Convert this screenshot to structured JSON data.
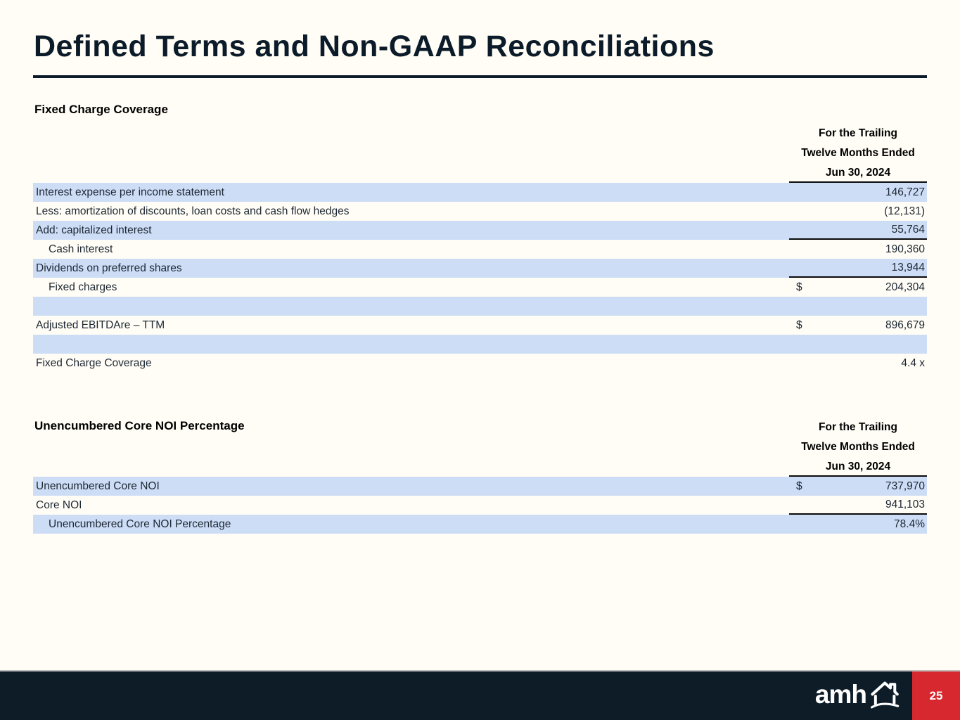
{
  "page": {
    "title": "Defined Terms and Non-GAAP Reconciliations",
    "logo_text": "amh",
    "page_number": "25"
  },
  "colors": {
    "background": "#fffdf5",
    "title_navy": "#0c1b29",
    "row_shade_blue": "#cdddf6",
    "footer_navy": "#0d1c27",
    "page_box_red": "#d7282f"
  },
  "tables": [
    {
      "section_title": "Fixed Charge Coverage",
      "header_lines": [
        "For the Trailing",
        "Twelve Months Ended",
        "Jun 30, 2024"
      ],
      "rows": [
        {
          "label": "Interest expense per income statement",
          "currency": "",
          "value": "146,727",
          "shaded": true,
          "indent": false,
          "underline": false
        },
        {
          "label": "Less: amortization of discounts, loan costs and cash flow hedges",
          "currency": "",
          "value": "(12,131)",
          "shaded": false,
          "indent": false,
          "underline": false
        },
        {
          "label": "Add: capitalized interest",
          "currency": "",
          "value": "55,764",
          "shaded": true,
          "indent": false,
          "underline": true
        },
        {
          "label": "Cash interest",
          "currency": "",
          "value": "190,360",
          "shaded": false,
          "indent": true,
          "underline": false
        },
        {
          "label": "Dividends on preferred shares",
          "currency": "",
          "value": "13,944",
          "shaded": true,
          "indent": false,
          "underline": true
        },
        {
          "label": "Fixed charges",
          "currency": "$",
          "value": "204,304",
          "shaded": false,
          "indent": true,
          "underline": false
        },
        {
          "label": "",
          "currency": "",
          "value": "",
          "shaded": true,
          "indent": false,
          "underline": false
        },
        {
          "label": "Adjusted EBITDAre – TTM",
          "currency": "$",
          "value": "896,679",
          "shaded": false,
          "indent": false,
          "underline": false
        },
        {
          "label": "",
          "currency": "",
          "value": "",
          "shaded": true,
          "indent": false,
          "underline": false
        },
        {
          "label": "Fixed Charge Coverage",
          "currency": "",
          "value": "4.4 x",
          "shaded": false,
          "indent": false,
          "underline": false
        }
      ]
    },
    {
      "section_title": "Unencumbered Core NOI Percentage",
      "header_lines": [
        "For the Trailing",
        "Twelve Months Ended",
        "Jun 30, 2024"
      ],
      "rows": [
        {
          "label": "Unencumbered Core NOI",
          "currency": "$",
          "value": "737,970",
          "shaded": true,
          "indent": false,
          "underline": false
        },
        {
          "label": "Core NOI",
          "currency": "",
          "value": "941,103",
          "shaded": false,
          "indent": false,
          "underline": true
        },
        {
          "label": "Unencumbered Core NOI Percentage",
          "currency": "",
          "value": "78.4%",
          "shaded": true,
          "indent": true,
          "underline": false
        }
      ]
    }
  ]
}
